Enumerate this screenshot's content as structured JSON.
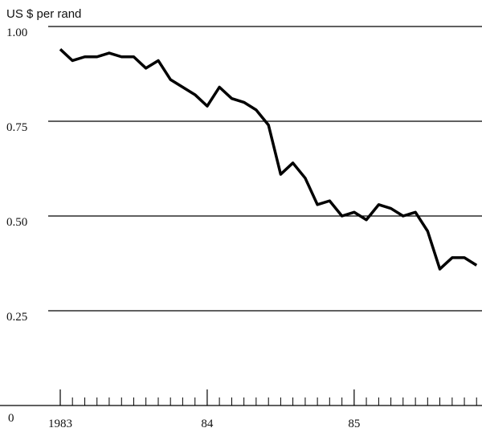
{
  "chart_data": {
    "type": "line",
    "y_label": "US $ per rand",
    "x": [
      1983,
      1983.083,
      1983.167,
      1983.25,
      1983.333,
      1983.417,
      1983.5,
      1983.583,
      1983.667,
      1983.75,
      1983.833,
      1983.917,
      1984,
      1984.083,
      1984.167,
      1984.25,
      1984.333,
      1984.417,
      1984.5,
      1984.583,
      1984.667,
      1984.75,
      1984.833,
      1984.917,
      1985,
      1985.083,
      1985.167,
      1985.25,
      1985.333,
      1985.417,
      1985.5,
      1985.583,
      1985.667,
      1985.75,
      1985.833
    ],
    "series": [
      {
        "name": "US $ per rand",
        "color": "#000000",
        "values": [
          0.94,
          0.91,
          0.92,
          0.92,
          0.93,
          0.92,
          0.92,
          0.89,
          0.91,
          0.86,
          0.84,
          0.82,
          0.79,
          0.84,
          0.81,
          0.8,
          0.78,
          0.74,
          0.61,
          0.64,
          0.6,
          0.53,
          0.54,
          0.5,
          0.51,
          0.49,
          0.53,
          0.52,
          0.5,
          0.51,
          0.46,
          0.36,
          0.39,
          0.39,
          0.37
        ]
      }
    ],
    "xlim": [
      1982.59,
      1985.87
    ],
    "xticks": [
      {
        "value": 1983,
        "label": "1983"
      },
      {
        "value": 1984,
        "label": "84"
      },
      {
        "value": 1985,
        "label": "85"
      }
    ],
    "xminorticks": [
      1983.083,
      1983.167,
      1983.25,
      1983.333,
      1983.417,
      1983.5,
      1983.583,
      1983.667,
      1983.75,
      1983.833,
      1983.917,
      1984.083,
      1984.167,
      1984.25,
      1984.333,
      1984.417,
      1984.5,
      1984.583,
      1984.667,
      1984.75,
      1984.833,
      1984.917,
      1985.083,
      1985.167,
      1985.25,
      1985.333,
      1985.417,
      1985.5,
      1985.583,
      1985.667,
      1985.75,
      1985.833
    ],
    "ylim": [
      0,
      1.07
    ],
    "yticks": [
      0,
      0.25,
      {
        "value": 0.5,
        "label": "0.50"
      },
      0.75,
      {
        "value": 1,
        "label": "1.00"
      }
    ],
    "grid": true
  }
}
